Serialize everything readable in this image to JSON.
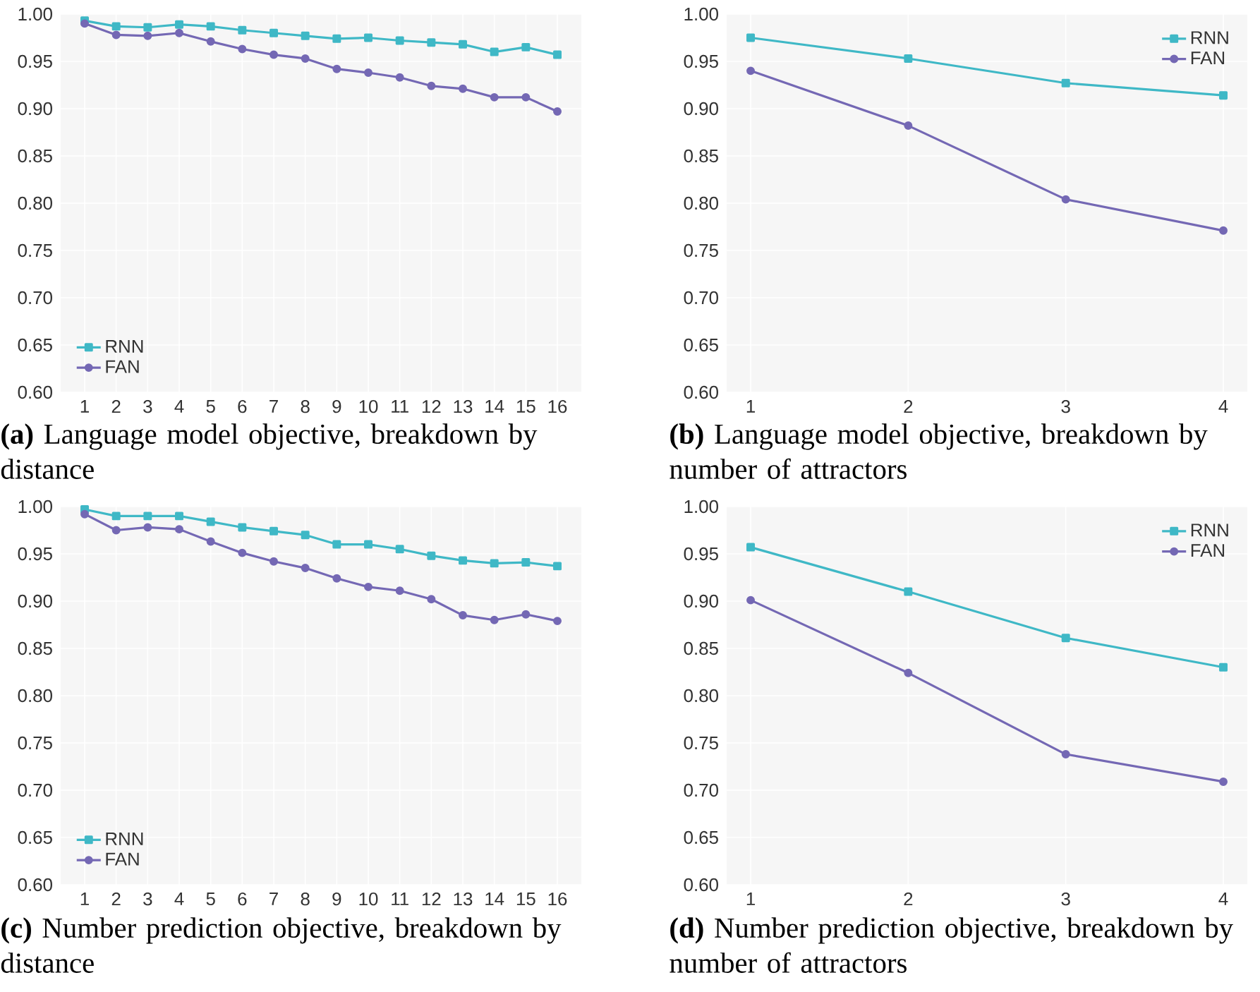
{
  "chart_data": [
    {
      "type": "line",
      "title": "**(a)** Language model objective, breakdown by distance",
      "categories": [
        "1",
        "2",
        "3",
        "4",
        "5",
        "6",
        "7",
        "8",
        "9",
        "10",
        "11",
        "12",
        "13",
        "14",
        "15",
        "16"
      ],
      "ylim": [
        0.6,
        1.0
      ],
      "yticks": [
        {
          "value": 0.6,
          "label": "0.60"
        },
        {
          "value": 0.65,
          "label": "0.65"
        },
        {
          "value": 0.7,
          "label": "0.70"
        },
        {
          "value": 0.75,
          "label": "0.75"
        },
        {
          "value": 0.8,
          "label": "0.80"
        },
        {
          "value": 0.85,
          "label": "0.85"
        },
        {
          "value": 0.9,
          "label": "0.90"
        },
        {
          "value": 0.95,
          "label": "0.95"
        },
        {
          "value": 1.0,
          "label": "1.00"
        }
      ],
      "grid": true,
      "legend": "bottom left",
      "line_style": "solid",
      "series": [
        {
          "name": "RNN",
          "color": "#3fb8c6",
          "marker": "square",
          "values": [
            0.993,
            0.987,
            0.986,
            0.989,
            0.987,
            0.983,
            0.98,
            0.977,
            0.974,
            0.975,
            0.972,
            0.97,
            0.968,
            0.96,
            0.965,
            0.957
          ]
        },
        {
          "name": "FAN",
          "color": "#7468b4",
          "marker": "circle",
          "values": [
            0.99,
            0.978,
            0.977,
            0.98,
            0.971,
            0.963,
            0.957,
            0.953,
            0.942,
            0.938,
            0.933,
            0.924,
            0.921,
            0.912,
            0.912,
            0.897
          ]
        }
      ]
    },
    {
      "type": "line",
      "title": "**(b)** Language model objective, breakdown by number of attractors",
      "categories": [
        "1",
        "2",
        "3",
        "4"
      ],
      "ylim": [
        0.6,
        1.0
      ],
      "yticks": [
        {
          "value": 0.6,
          "label": "0.60"
        },
        {
          "value": 0.65,
          "label": "0.65"
        },
        {
          "value": 0.7,
          "label": "0.70"
        },
        {
          "value": 0.75,
          "label": "0.75"
        },
        {
          "value": 0.8,
          "label": "0.80"
        },
        {
          "value": 0.85,
          "label": "0.85"
        },
        {
          "value": 0.9,
          "label": "0.90"
        },
        {
          "value": 0.95,
          "label": "0.95"
        },
        {
          "value": 1.0,
          "label": "1.00"
        }
      ],
      "grid": true,
      "legend": "top right",
      "line_style": "solid",
      "series": [
        {
          "name": "RNN",
          "color": "#3fb8c6",
          "marker": "square",
          "values": [
            0.975,
            0.953,
            0.927,
            0.914
          ]
        },
        {
          "name": "FAN",
          "color": "#7468b4",
          "marker": "circle",
          "values": [
            0.94,
            0.882,
            0.804,
            0.771
          ]
        }
      ]
    },
    {
      "type": "line",
      "title": "**(c)** Number prediction objective, breakdown by distance",
      "categories": [
        "1",
        "2",
        "3",
        "4",
        "5",
        "6",
        "7",
        "8",
        "9",
        "10",
        "11",
        "12",
        "13",
        "14",
        "15",
        "16"
      ],
      "ylim": [
        0.6,
        1.0
      ],
      "yticks": [
        {
          "value": 0.6,
          "label": "0.60"
        },
        {
          "value": 0.65,
          "label": "0.65"
        },
        {
          "value": 0.7,
          "label": "0.70"
        },
        {
          "value": 0.75,
          "label": "0.75"
        },
        {
          "value": 0.8,
          "label": "0.80"
        },
        {
          "value": 0.85,
          "label": "0.85"
        },
        {
          "value": 0.9,
          "label": "0.90"
        },
        {
          "value": 0.95,
          "label": "0.95"
        },
        {
          "value": 1.0,
          "label": "1.00"
        }
      ],
      "grid": true,
      "legend": "bottom left",
      "line_style": "solid",
      "series": [
        {
          "name": "RNN",
          "color": "#3fb8c6",
          "marker": "square",
          "values": [
            0.997,
            0.99,
            0.99,
            0.99,
            0.984,
            0.978,
            0.974,
            0.97,
            0.96,
            0.96,
            0.955,
            0.948,
            0.943,
            0.94,
            0.941,
            0.937
          ]
        },
        {
          "name": "FAN",
          "color": "#7468b4",
          "marker": "circle",
          "values": [
            0.992,
            0.975,
            0.978,
            0.976,
            0.963,
            0.951,
            0.942,
            0.935,
            0.924,
            0.915,
            0.911,
            0.902,
            0.885,
            0.88,
            0.886,
            0.879
          ]
        }
      ]
    },
    {
      "type": "line",
      "title": "**(d)** Number prediction objective, breakdown by number of attractors",
      "categories": [
        "1",
        "2",
        "3",
        "4"
      ],
      "ylim": [
        0.6,
        1.0
      ],
      "yticks": [
        {
          "value": 0.6,
          "label": "0.60"
        },
        {
          "value": 0.65,
          "label": "0.65"
        },
        {
          "value": 0.7,
          "label": "0.70"
        },
        {
          "value": 0.75,
          "label": "0.75"
        },
        {
          "value": 0.8,
          "label": "0.80"
        },
        {
          "value": 0.85,
          "label": "0.85"
        },
        {
          "value": 0.9,
          "label": "0.90"
        },
        {
          "value": 0.95,
          "label": "0.95"
        },
        {
          "value": 1.0,
          "label": "1.00"
        }
      ],
      "grid": true,
      "legend": "top right",
      "line_style": "solid",
      "series": [
        {
          "name": "RNN",
          "color": "#3fb8c6",
          "marker": "square",
          "values": [
            0.957,
            0.91,
            0.861,
            0.83
          ]
        },
        {
          "name": "FAN",
          "color": "#7468b4",
          "marker": "circle",
          "values": [
            0.901,
            0.824,
            0.738,
            0.709
          ]
        }
      ]
    }
  ]
}
